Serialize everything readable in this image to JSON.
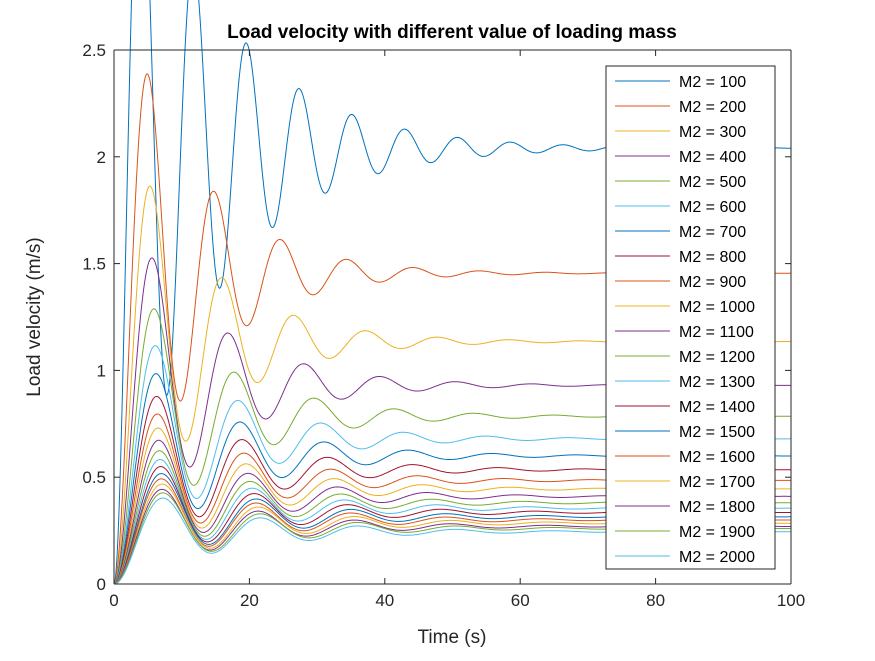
{
  "chart_data": {
    "type": "line",
    "title": "Load velocity with different value of loading mass",
    "xlabel": "Time (s)",
    "ylabel": "Load velocity (m/s)",
    "xlim": [
      0,
      100
    ],
    "ylim": [
      0,
      2.5
    ],
    "xticks": [
      0,
      20,
      40,
      60,
      80,
      100
    ],
    "xtick_labels": [
      "0",
      "20",
      "40",
      "60",
      "80",
      "100"
    ],
    "yticks": [
      0,
      0.5,
      1,
      1.5,
      2,
      2.5
    ],
    "ytick_labels": [
      "0",
      "0.5",
      "1",
      "1.5",
      "2",
      "2.5"
    ],
    "grid": false,
    "legend_position": "top-right",
    "series": [
      {
        "name": "M2 = 100",
        "color": "#0072BD",
        "steady": 2.04,
        "peak_time": 3.9,
        "overshoot": 0.0
      },
      {
        "name": "M2 = 200",
        "color": "#D95319",
        "steady": 1.455,
        "peak_time": 4.9,
        "overshoot": 0.05
      },
      {
        "name": "M2 = 300",
        "color": "#EDB120",
        "steady": 1.135,
        "peak_time": 5.3,
        "overshoot": 0.07
      },
      {
        "name": "M2 = 400",
        "color": "#7E2F8E",
        "steady": 0.93,
        "peak_time": 5.6,
        "overshoot": 0.07
      },
      {
        "name": "M2 = 500",
        "color": "#77AC30",
        "steady": 0.785,
        "peak_time": 5.9,
        "overshoot": 0.07
      },
      {
        "name": "M2 = 600",
        "color": "#4DBEEE",
        "steady": 0.68,
        "peak_time": 6.1,
        "overshoot": 0.07
      },
      {
        "name": "M2 = 700",
        "color": "#0072BD",
        "steady": 0.6,
        "peak_time": 6.2,
        "overshoot": 0.06
      },
      {
        "name": "M2 = 800",
        "color": "#A2142F",
        "steady": 0.535,
        "peak_time": 6.3,
        "overshoot": 0.06
      },
      {
        "name": "M2 = 900",
        "color": "#D95319",
        "steady": 0.485,
        "peak_time": 6.4,
        "overshoot": 0.055
      },
      {
        "name": "M2 = 1000",
        "color": "#EDB120",
        "steady": 0.445,
        "peak_time": 6.5,
        "overshoot": 0.05
      },
      {
        "name": "M2 = 1100",
        "color": "#7E2F8E",
        "steady": 0.41,
        "peak_time": 6.6,
        "overshoot": 0.045
      },
      {
        "name": "M2 = 1200",
        "color": "#77AC30",
        "steady": 0.38,
        "peak_time": 6.7,
        "overshoot": 0.04
      },
      {
        "name": "M2 = 1300",
        "color": "#4DBEEE",
        "steady": 0.355,
        "peak_time": 6.8,
        "overshoot": 0.04
      },
      {
        "name": "M2 = 1400",
        "color": "#A2142F",
        "steady": 0.335,
        "peak_time": 6.9,
        "overshoot": 0.035
      },
      {
        "name": "M2 = 1500",
        "color": "#0072BD",
        "steady": 0.315,
        "peak_time": 7.0,
        "overshoot": 0.035
      },
      {
        "name": "M2 = 1600",
        "color": "#D95319",
        "steady": 0.3,
        "peak_time": 7.0,
        "overshoot": 0.03
      },
      {
        "name": "M2 = 1700",
        "color": "#EDB120",
        "steady": 0.285,
        "peak_time": 7.1,
        "overshoot": 0.03
      },
      {
        "name": "M2 = 1800",
        "color": "#7E2F8E",
        "steady": 0.27,
        "peak_time": 7.1,
        "overshoot": 0.028
      },
      {
        "name": "M2 = 1900",
        "color": "#77AC30",
        "steady": 0.26,
        "peak_time": 7.2,
        "overshoot": 0.025
      },
      {
        "name": "M2 = 2000",
        "color": "#4DBEEE",
        "steady": 0.245,
        "peak_time": 7.2,
        "overshoot": 0.025
      }
    ]
  }
}
